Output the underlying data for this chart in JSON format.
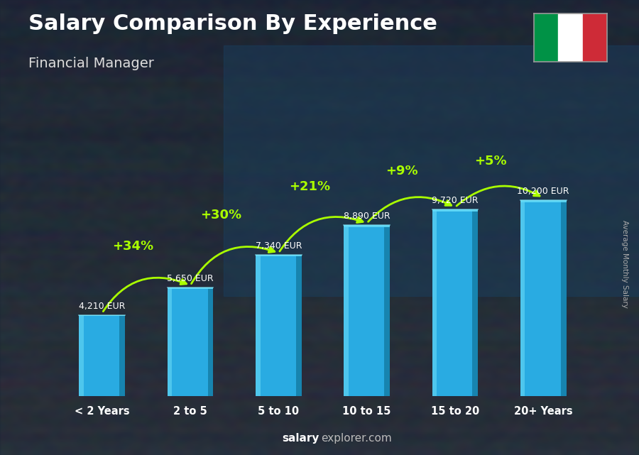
{
  "title": "Salary Comparison By Experience",
  "subtitle": "Financial Manager",
  "ylabel": "Average Monthly Salary",
  "footer_bold": "salary",
  "footer_rest": "explorer.com",
  "categories": [
    "< 2 Years",
    "2 to 5",
    "5 to 10",
    "10 to 15",
    "15 to 20",
    "20+ Years"
  ],
  "values": [
    4210,
    5650,
    7340,
    8890,
    9720,
    10200
  ],
  "value_labels": [
    "4,210 EUR",
    "5,650 EUR",
    "7,340 EUR",
    "8,890 EUR",
    "9,720 EUR",
    "10,200 EUR"
  ],
  "pct_labels": [
    "+34%",
    "+30%",
    "+21%",
    "+9%",
    "+5%"
  ],
  "pct_color": "#aaff00",
  "bar_main": "#29abe2",
  "bar_light": "#55ccf0",
  "bar_dark": "#1580aa",
  "bar_top": "#60d8f5",
  "title_color": "#ffffff",
  "subtitle_color": "#dddddd",
  "value_label_color": "#ffffff",
  "footer_bold_color": "#ffffff",
  "footer_rest_color": "#bbbbbb",
  "ylabel_color": "#aaaaaa",
  "xtick_color": "#ffffff",
  "bg_top": "#3a4a5a",
  "bg_bottom": "#2a3540",
  "flag_green": "#009246",
  "flag_white": "#ffffff",
  "flag_red": "#ce2b37"
}
